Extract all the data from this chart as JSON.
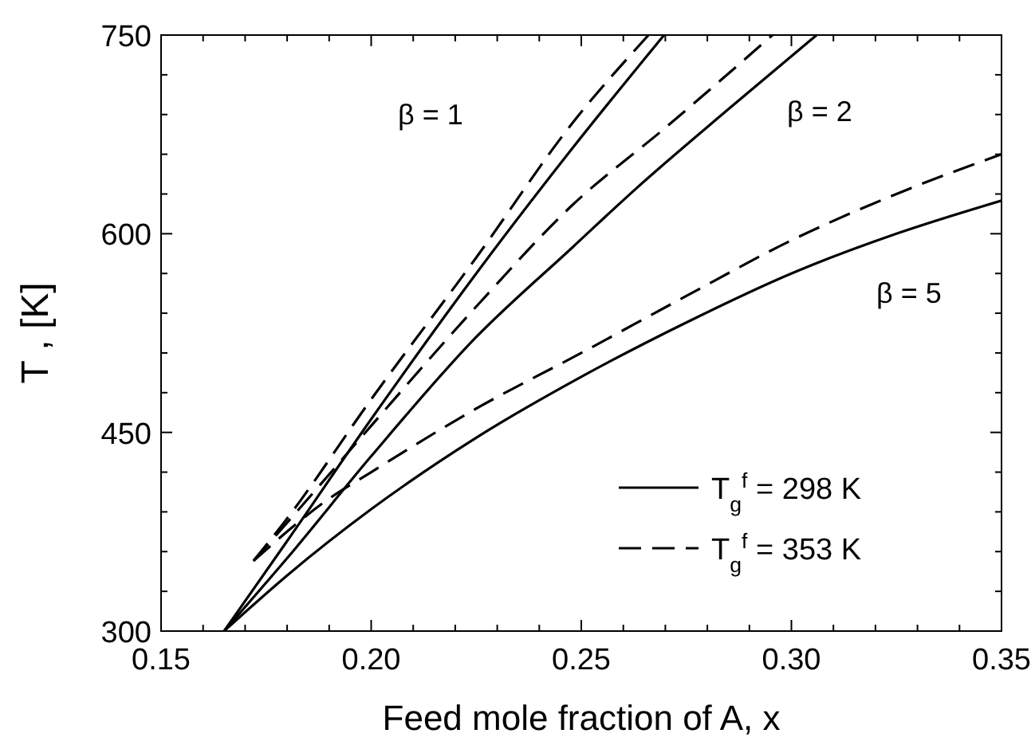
{
  "chart_data": {
    "type": "line",
    "xlabel": "Feed mole fraction of A, x",
    "ylabel": "T , [K]",
    "xlim": [
      0.15,
      0.35
    ],
    "ylim": [
      300,
      750
    ],
    "xticks": [
      0.15,
      {
        "value": 0.16,
        "label": null
      },
      {
        "value": 0.17,
        "label": null
      },
      {
        "value": 0.18,
        "label": null
      },
      {
        "value": 0.19,
        "label": null
      },
      {
        "value": 0.2,
        "label": "0.20"
      },
      {
        "value": 0.21,
        "label": null
      },
      {
        "value": 0.22,
        "label": null
      },
      {
        "value": 0.23,
        "label": null
      },
      {
        "value": 0.24,
        "label": null
      },
      0.25,
      {
        "value": 0.26,
        "label": null
      },
      {
        "value": 0.27,
        "label": null
      },
      {
        "value": 0.28,
        "label": null
      },
      {
        "value": 0.29,
        "label": null
      },
      {
        "value": 0.3,
        "label": "0.30"
      },
      {
        "value": 0.31,
        "label": null
      },
      {
        "value": 0.32,
        "label": null
      },
      {
        "value": 0.33,
        "label": null
      },
      {
        "value": 0.34,
        "label": null
      },
      0.35
    ],
    "yticks": [
      300,
      {
        "value": 330,
        "label": null
      },
      {
        "value": 360,
        "label": null
      },
      {
        "value": 390,
        "label": null
      },
      {
        "value": 420,
        "label": null
      },
      450,
      {
        "value": 480,
        "label": null
      },
      {
        "value": 510,
        "label": null
      },
      {
        "value": 540,
        "label": null
      },
      {
        "value": 570,
        "label": null
      },
      600,
      {
        "value": 630,
        "label": null
      },
      {
        "value": 660,
        "label": null
      },
      {
        "value": 690,
        "label": null
      },
      {
        "value": 720,
        "label": null
      },
      750
    ],
    "grid": false,
    "legend": "bottom right",
    "series": [
      {
        "color": "#000000",
        "line_style": "solid",
        "x": [
          0.165,
          0.18,
          0.2,
          0.225,
          0.248,
          0.2697
        ],
        "values": [
          300,
          368,
          460,
          570,
          665,
          750
        ]
      },
      {
        "color": "#000000",
        "line_style": "dashed",
        "x": [
          0.172,
          0.18,
          0.2,
          0.225,
          0.248,
          0.266
        ],
        "values": [
          353,
          385,
          475,
          582,
          684,
          750
        ]
      },
      {
        "color": "#000000",
        "line_style": "solid",
        "x": [
          0.165,
          0.18,
          0.2,
          0.225,
          0.248,
          0.263,
          0.285,
          0.306
        ],
        "values": [
          300,
          355,
          432,
          522,
          590,
          634,
          694,
          750
        ]
      },
      {
        "color": "#000000",
        "line_style": "dashed",
        "x": [
          0.172,
          0.185,
          0.2,
          0.225,
          0.248,
          0.27,
          0.2955
        ],
        "values": [
          353,
          400,
          455,
          545,
          622,
          680,
          750
        ]
      },
      {
        "name": "T$_{g}$$^{f}$ = 298 K",
        "color": "#000000",
        "line_style": "solid",
        "x": [
          0.165,
          0.18,
          0.2,
          0.225,
          0.25,
          0.275,
          0.3,
          0.325,
          0.35
        ],
        "values": [
          300,
          342,
          392,
          446,
          492,
          533,
          570,
          600,
          625
        ]
      },
      {
        "name": "T$_{g}$$^{f}$ = 353 K",
        "color": "#000000",
        "line_style": "dashed",
        "x": [
          0.172,
          0.19,
          0.2,
          0.225,
          0.25,
          0.275,
          0.3,
          0.325,
          0.35
        ],
        "values": [
          353,
          400,
          420,
          468,
          510,
          553,
          595,
          630,
          660
        ]
      }
    ],
    "annotations": [
      "β = 1",
      "β = 2",
      "β = 5"
    ]
  }
}
